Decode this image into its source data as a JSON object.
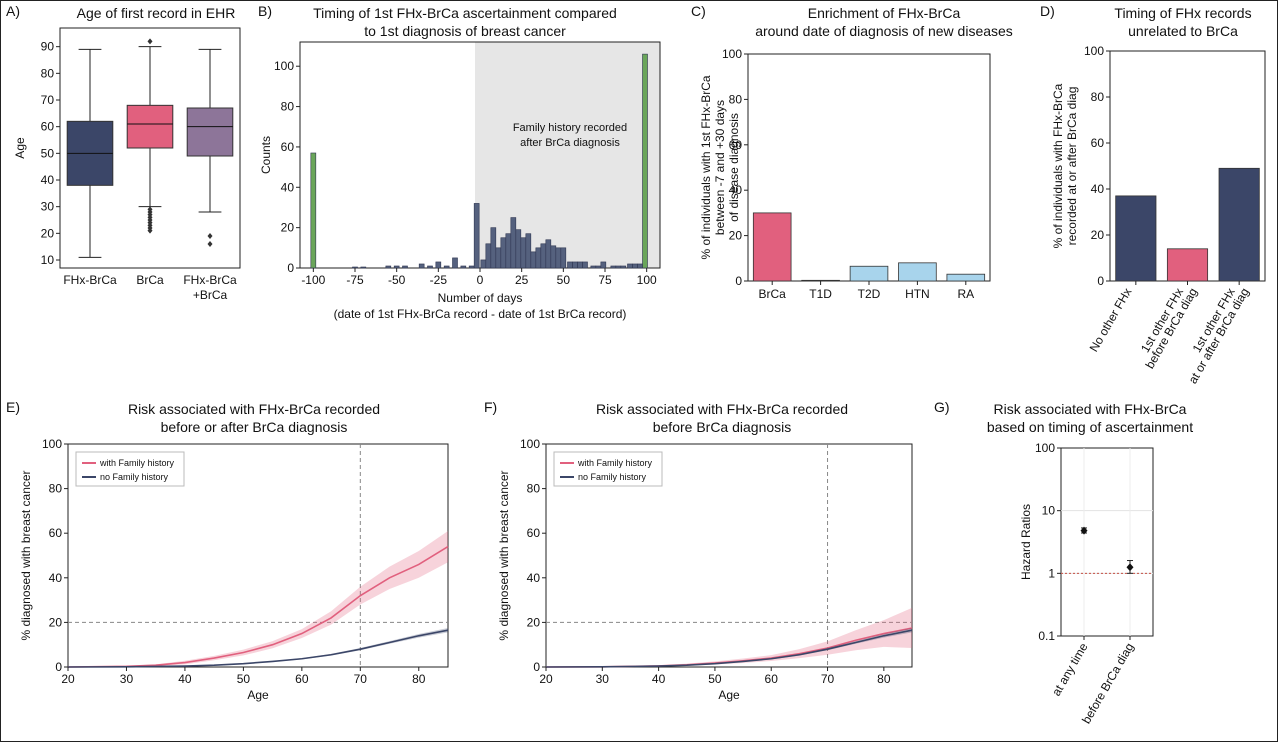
{
  "panels": {
    "A": {
      "label": "A)",
      "title": "Age of first record in EHR"
    },
    "B": {
      "label": "B)",
      "title_lines": [
        "Timing of 1st FHx-BrCa ascertainment compared",
        "to 1st diagnosis of breast cancer"
      ]
    },
    "C": {
      "label": "C)",
      "title_lines": [
        "Enrichment of FHx-BrCa",
        "around date of diagnosis of new diseases"
      ]
    },
    "D": {
      "label": "D)",
      "title_lines": [
        "Timing of FHx records",
        "unrelated to BrCa"
      ]
    },
    "E": {
      "label": "E)",
      "title_lines": [
        "Risk associated with FHx-BrCa recorded",
        "before or after BrCa diagnosis"
      ]
    },
    "F": {
      "label": "F)",
      "title_lines": [
        "Risk associated with FHx-BrCa recorded",
        "before BrCa diagnosis"
      ]
    },
    "G": {
      "label": "G)",
      "title_lines": [
        "Risk associated with FHx-BrCa",
        "based on timing of ascertainment"
      ]
    }
  },
  "colors": {
    "navy": "#3b4668",
    "pink": "#e1607e",
    "mauve": "#8d7599",
    "green": "#6aa65a",
    "lightblue": "#a8d4ec"
  },
  "chart_data": [
    {
      "id": "A",
      "type": "box",
      "categories": [
        "FHx-BrCa",
        "BrCa",
        "FHx-BrCa\n+BrCa"
      ],
      "ylabel": "Age",
      "ylim": [
        7,
        97
      ],
      "yticks": [
        10,
        20,
        30,
        40,
        50,
        60,
        70,
        80,
        90
      ],
      "boxes": [
        {
          "q1": 38,
          "median": 50,
          "q3": 62,
          "whisker_low": 11,
          "whisker_high": 89,
          "outliers": [],
          "color": "#3b4668"
        },
        {
          "q1": 52,
          "median": 61,
          "q3": 68,
          "whisker_low": 30,
          "whisker_high": 90,
          "outliers": [
            92,
            29,
            28,
            27,
            26,
            25,
            24,
            23,
            22,
            21
          ],
          "color": "#e1607e"
        },
        {
          "q1": 49,
          "median": 60,
          "q3": 67,
          "whisker_low": 28,
          "whisker_high": 89,
          "outliers": [
            19,
            16
          ],
          "color": "#8d7599"
        }
      ]
    },
    {
      "id": "B",
      "type": "bar",
      "xlabel": "Number of days",
      "xlabel2": "(date of 1st FHx-BrCa record - date of 1st BrCa record)",
      "ylabel": "Counts",
      "xlim": [
        -108,
        108
      ],
      "ylim": [
        0,
        112
      ],
      "xticks": [
        -100,
        -75,
        -50,
        -25,
        0,
        25,
        50,
        75,
        100
      ],
      "yticks": [
        0,
        20,
        40,
        60,
        80,
        100
      ],
      "shade_from": -3,
      "annotation": [
        "Family history recorded",
        "after BrCa diagnosis"
      ],
      "bins": [
        {
          "x": -100,
          "y": 57,
          "color": "green"
        },
        {
          "x": -75,
          "y": 0.5
        },
        {
          "x": -70,
          "y": 0.5
        },
        {
          "x": -55,
          "y": 1
        },
        {
          "x": -50,
          "y": 1
        },
        {
          "x": -45,
          "y": 1
        },
        {
          "x": -35,
          "y": 2
        },
        {
          "x": -30,
          "y": 1
        },
        {
          "x": -25,
          "y": 3
        },
        {
          "x": -20,
          "y": 1
        },
        {
          "x": -15,
          "y": 5
        },
        {
          "x": -10,
          "y": 1
        },
        {
          "x": -5,
          "y": 1
        },
        {
          "x": -2,
          "y": 32
        },
        {
          "x": 2,
          "y": 4
        },
        {
          "x": 5,
          "y": 12
        },
        {
          "x": 8,
          "y": 20
        },
        {
          "x": 11,
          "y": 10
        },
        {
          "x": 14,
          "y": 15
        },
        {
          "x": 17,
          "y": 17
        },
        {
          "x": 20,
          "y": 25
        },
        {
          "x": 23,
          "y": 19
        },
        {
          "x": 26,
          "y": 15
        },
        {
          "x": 29,
          "y": 17
        },
        {
          "x": 32,
          "y": 8
        },
        {
          "x": 35,
          "y": 10
        },
        {
          "x": 38,
          "y": 12
        },
        {
          "x": 41,
          "y": 14
        },
        {
          "x": 44,
          "y": 11
        },
        {
          "x": 47,
          "y": 10
        },
        {
          "x": 50,
          "y": 10
        },
        {
          "x": 54,
          "y": 3
        },
        {
          "x": 57,
          "y": 3
        },
        {
          "x": 60,
          "y": 3
        },
        {
          "x": 63,
          "y": 3
        },
        {
          "x": 68,
          "y": 1
        },
        {
          "x": 71,
          "y": 1
        },
        {
          "x": 74,
          "y": 3
        },
        {
          "x": 80,
          "y": 1
        },
        {
          "x": 83,
          "y": 1
        },
        {
          "x": 86,
          "y": 1
        },
        {
          "x": 90,
          "y": 2
        },
        {
          "x": 93,
          "y": 2
        },
        {
          "x": 96,
          "y": 2
        },
        {
          "x": 99,
          "y": 106,
          "color": "green"
        }
      ]
    },
    {
      "id": "C",
      "type": "bar",
      "categories": [
        "BrCa",
        "T1D",
        "T2D",
        "HTN",
        "RA"
      ],
      "values": [
        30,
        0.3,
        6.5,
        8,
        3
      ],
      "colors": [
        "pink",
        "pink",
        "lightblue",
        "lightblue",
        "lightblue"
      ],
      "ylabel_lines": [
        "% of individuals with 1st FHx-BrCa",
        "between -7 and +30 days",
        "of disease diagnosis"
      ],
      "ylim": [
        0,
        100
      ],
      "yticks": [
        0,
        20,
        40,
        60,
        80,
        100
      ]
    },
    {
      "id": "D",
      "type": "bar",
      "categories": [
        [
          "No other FHx"
        ],
        [
          "1st other FHx",
          "before BrCa diag"
        ],
        [
          "1st other FHx",
          "at or after BrCa diag"
        ]
      ],
      "values": [
        37,
        14,
        49
      ],
      "colors": [
        "navy",
        "pink",
        "navy"
      ],
      "ylabel_lines": [
        "% of individuals with FHx-BrCa",
        "recorded at or after BrCa diag"
      ],
      "ylim": [
        0,
        100
      ],
      "yticks": [
        0,
        20,
        40,
        60,
        80,
        100
      ]
    },
    {
      "id": "E",
      "type": "line",
      "xlabel": "Age",
      "ylabel": "% diagnosed with breast cancer",
      "xlim": [
        20,
        85
      ],
      "ylim": [
        0,
        100
      ],
      "xticks": [
        20,
        30,
        40,
        50,
        60,
        70,
        80
      ],
      "yticks": [
        0,
        20,
        40,
        60,
        80,
        100
      ],
      "vline": 70,
      "hline": 20,
      "legend": [
        "with Family history",
        "no Family history"
      ],
      "series": [
        {
          "name": "with Family history",
          "color": "pink",
          "x": [
            20,
            30,
            35,
            40,
            45,
            50,
            55,
            60,
            65,
            70,
            75,
            80,
            85
          ],
          "y": [
            0,
            0.3,
            0.8,
            2,
            4,
            6.5,
            10,
            15,
            22,
            32,
            40,
            46,
            54
          ],
          "band": [
            0,
            0.2,
            0.4,
            0.8,
            1,
            1.3,
            1.6,
            2,
            3,
            4,
            5,
            6,
            7
          ]
        },
        {
          "name": "no Family history",
          "color": "navy",
          "x": [
            20,
            30,
            40,
            45,
            50,
            55,
            60,
            65,
            70,
            75,
            80,
            85
          ],
          "y": [
            0,
            0.1,
            0.4,
            0.8,
            1.5,
            2.5,
            3.7,
            5.5,
            8,
            11,
            14,
            16.5
          ],
          "band": [
            0,
            0,
            0.1,
            0.1,
            0.2,
            0.2,
            0.3,
            0.4,
            0.5,
            0.6,
            0.8,
            1
          ]
        }
      ]
    },
    {
      "id": "F",
      "type": "line",
      "xlabel": "Age",
      "ylabel": "% diagnosed with breast cancer",
      "xlim": [
        20,
        85
      ],
      "ylim": [
        0,
        100
      ],
      "xticks": [
        20,
        30,
        40,
        50,
        60,
        70,
        80
      ],
      "yticks": [
        0,
        20,
        40,
        60,
        80,
        100
      ],
      "vline": 70,
      "hline": 20,
      "legend": [
        "with Family history",
        "no Family history"
      ],
      "series": [
        {
          "name": "with Family history",
          "color": "pink",
          "x": [
            20,
            30,
            40,
            45,
            50,
            55,
            60,
            65,
            70,
            75,
            80,
            85
          ],
          "y": [
            0,
            0.1,
            0.5,
            1,
            1.8,
            2.8,
            4,
            6,
            8.5,
            12,
            15,
            17.5
          ],
          "band": [
            0,
            0.1,
            0.3,
            0.5,
            0.7,
            1,
            1.3,
            2,
            3,
            4.5,
            6,
            9
          ]
        },
        {
          "name": "no Family history",
          "color": "navy",
          "x": [
            20,
            30,
            40,
            45,
            50,
            55,
            60,
            65,
            70,
            75,
            80,
            85
          ],
          "y": [
            0,
            0.1,
            0.4,
            0.8,
            1.5,
            2.5,
            3.7,
            5.5,
            8,
            11,
            14,
            16.5
          ],
          "band": [
            0,
            0,
            0.1,
            0.1,
            0.2,
            0.2,
            0.3,
            0.4,
            0.5,
            0.6,
            0.8,
            1
          ]
        }
      ]
    },
    {
      "id": "G",
      "type": "scatter",
      "ylabel": "Hazard Ratios",
      "yscale": "log",
      "ylim": [
        0.1,
        100
      ],
      "yticks": [
        "0.1",
        "1",
        "10",
        "100"
      ],
      "categories": [
        "at any time",
        "before BrCa diag"
      ],
      "points": [
        {
          "hr": 4.8,
          "lo": 4.4,
          "hi": 5.3
        },
        {
          "hr": 1.25,
          "lo": 1.0,
          "hi": 1.6
        }
      ],
      "refline": 1
    }
  ]
}
